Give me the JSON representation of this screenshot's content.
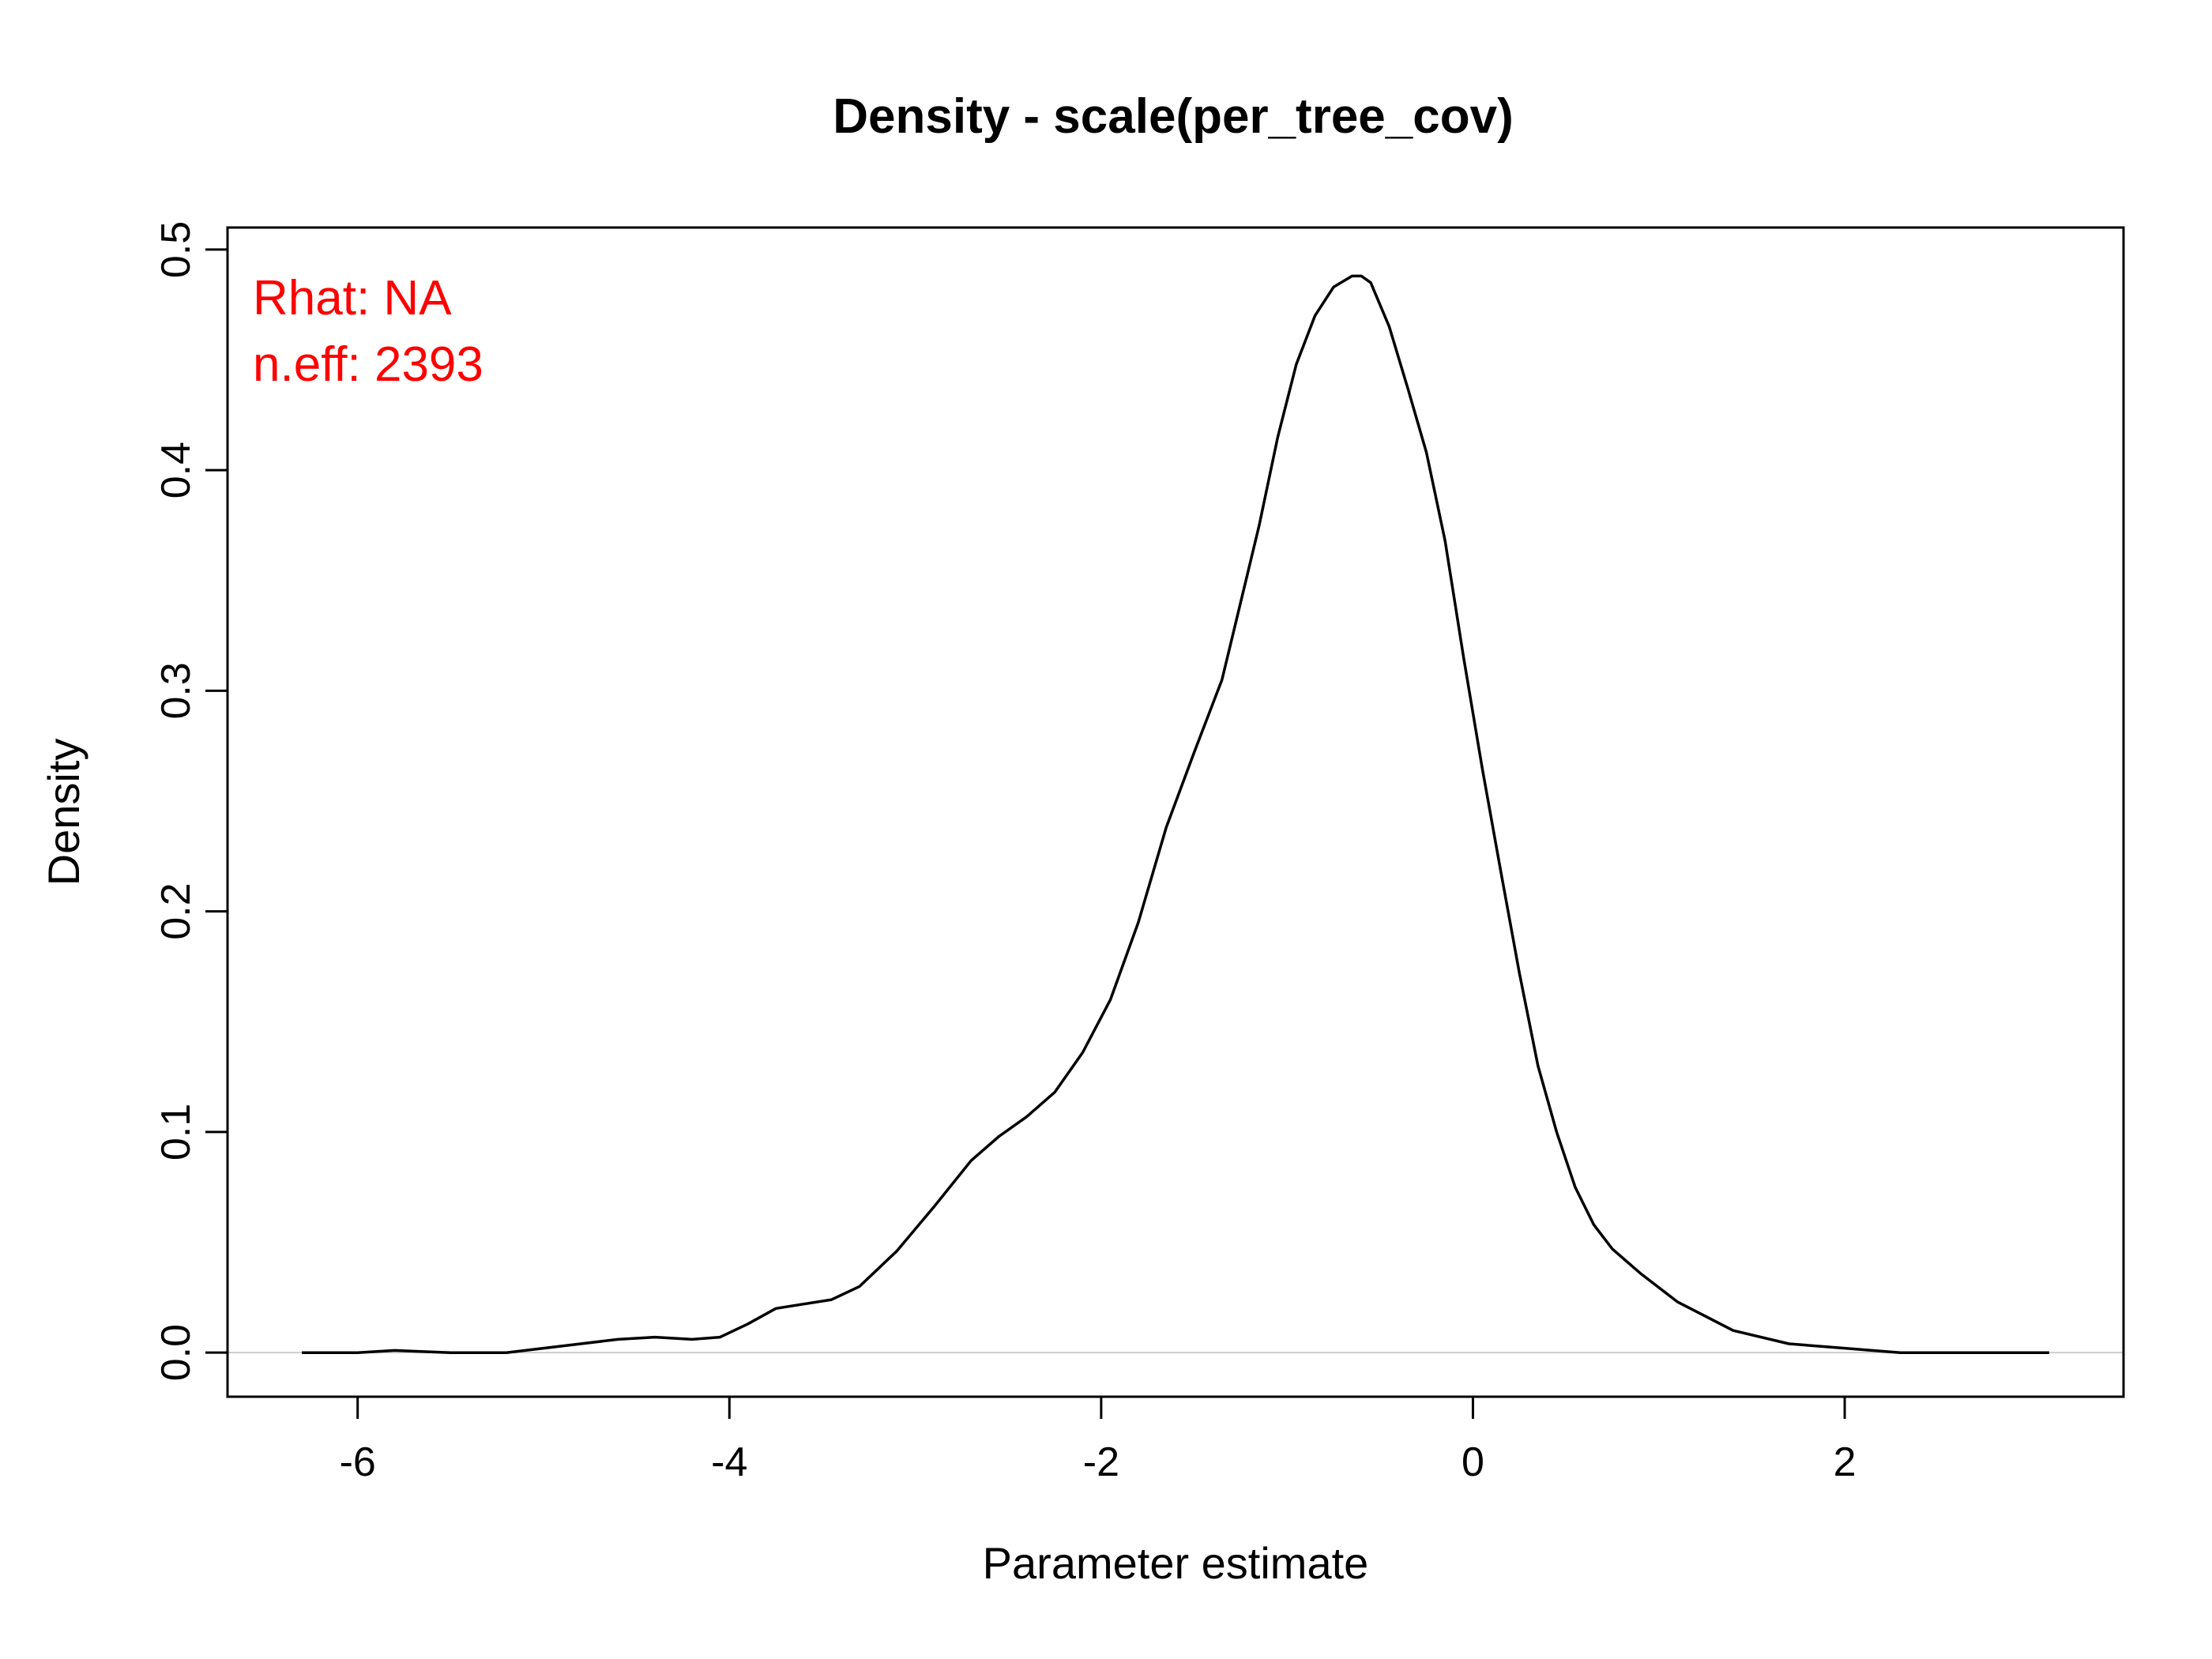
{
  "chart_data": {
    "type": "line",
    "title": "Density - scale(per_tree_cov)",
    "xlabel": "Parameter estimate",
    "ylabel": "Density",
    "xlim": [
      -6.7,
      3.5
    ],
    "ylim": [
      -0.02,
      0.51
    ],
    "xticks": [
      -6,
      -4,
      -2,
      0,
      2
    ],
    "xtick_labels": [
      "-6",
      "-4",
      "-2",
      "0",
      "2"
    ],
    "yticks": [
      0.0,
      0.1,
      0.2,
      0.3,
      0.4,
      0.5
    ],
    "ytick_labels": [
      "0.0",
      "0.1",
      "0.2",
      "0.3",
      "0.4",
      "0.5"
    ],
    "grid": false,
    "reference_line": {
      "y": 0,
      "color": "#cccccc"
    },
    "annotations": {
      "rhat": "Rhat: NA",
      "neff": "n.eff: 2393",
      "color": "#ff0000",
      "placement": "top-left"
    },
    "series": [
      {
        "color": "#000000",
        "x": [
          -6.3,
          -6.0,
          -5.8,
          -5.5,
          -5.2,
          -5.0,
          -4.8,
          -4.6,
          -4.4,
          -4.2,
          -4.05,
          -3.9,
          -3.75,
          -3.6,
          -3.45,
          -3.3,
          -3.1,
          -2.9,
          -2.7,
          -2.55,
          -2.4,
          -2.25,
          -2.1,
          -1.95,
          -1.8,
          -1.65,
          -1.5,
          -1.35,
          -1.25,
          -1.15,
          -1.05,
          -0.95,
          -0.85,
          -0.75,
          -0.65,
          -0.6,
          -0.55,
          -0.45,
          -0.35,
          -0.25,
          -0.15,
          -0.05,
          0.05,
          0.15,
          0.25,
          0.35,
          0.45,
          0.55,
          0.65,
          0.75,
          0.9,
          1.1,
          1.4,
          1.7,
          2.0,
          2.3,
          2.6,
          2.9,
          3.1
        ],
        "y": [
          0.0,
          0.0,
          0.001,
          0.0,
          0.0,
          0.002,
          0.004,
          0.006,
          0.007,
          0.006,
          0.007,
          0.013,
          0.02,
          0.022,
          0.024,
          0.03,
          0.046,
          0.066,
          0.087,
          0.098,
          0.107,
          0.118,
          0.136,
          0.16,
          0.195,
          0.238,
          0.272,
          0.305,
          0.34,
          0.375,
          0.415,
          0.448,
          0.47,
          0.483,
          0.488,
          0.488,
          0.485,
          0.465,
          0.437,
          0.408,
          0.368,
          0.315,
          0.265,
          0.218,
          0.172,
          0.13,
          0.1,
          0.075,
          0.058,
          0.047,
          0.036,
          0.023,
          0.01,
          0.004,
          0.002,
          0.0,
          0.0,
          0.0,
          0.0
        ]
      }
    ]
  }
}
